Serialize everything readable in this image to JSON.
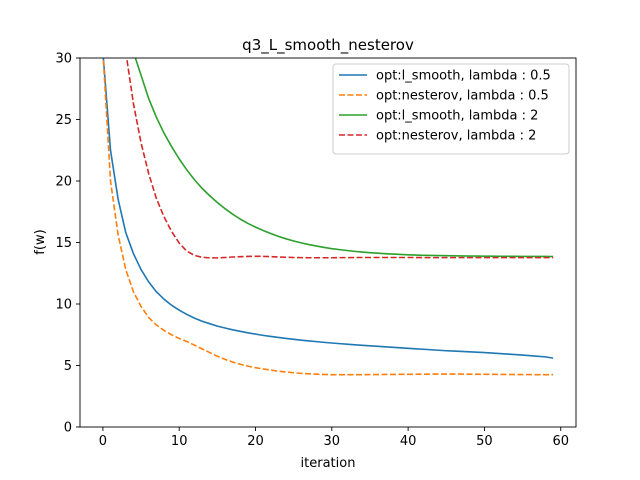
{
  "chart_data": {
    "type": "line",
    "title": "q3_L_smooth_nesterov",
    "xlabel": "iteration",
    "ylabel": "f(w)",
    "xlim": [
      -3,
      62
    ],
    "ylim": [
      0,
      30
    ],
    "xticks": [
      0,
      10,
      20,
      30,
      40,
      50,
      60
    ],
    "yticks": [
      0,
      5,
      10,
      15,
      20,
      25,
      30
    ],
    "grid": false,
    "legend_position": "top-right",
    "x": [
      0,
      1,
      2,
      3,
      4,
      5,
      6,
      7,
      8,
      9,
      10,
      11,
      12,
      13,
      14,
      15,
      16,
      17,
      18,
      19,
      20,
      21,
      22,
      23,
      24,
      25,
      26,
      27,
      28,
      29,
      30,
      31,
      32,
      33,
      34,
      35,
      36,
      37,
      38,
      39,
      40,
      41,
      42,
      43,
      44,
      45,
      46,
      47,
      48,
      49,
      50,
      51,
      52,
      53,
      54,
      55,
      56,
      57,
      58,
      59
    ],
    "series": [
      {
        "name": "opt:l_smooth, lambda : 0.5",
        "color": "#1f77b4",
        "dash": "solid",
        "values": [
          30.5,
          22.5,
          18.5,
          15.8,
          14.1,
          12.8,
          11.8,
          11.0,
          10.4,
          9.9,
          9.5,
          9.15,
          8.85,
          8.6,
          8.4,
          8.2,
          8.05,
          7.9,
          7.78,
          7.66,
          7.55,
          7.45,
          7.36,
          7.28,
          7.2,
          7.13,
          7.06,
          7.0,
          6.94,
          6.88,
          6.83,
          6.78,
          6.73,
          6.68,
          6.64,
          6.6,
          6.56,
          6.52,
          6.48,
          6.44,
          6.4,
          6.36,
          6.32,
          6.28,
          6.24,
          6.2,
          6.17,
          6.14,
          6.11,
          6.08,
          6.05,
          6.01,
          5.97,
          5.93,
          5.89,
          5.85,
          5.8,
          5.75,
          5.7,
          5.6
        ]
      },
      {
        "name": "opt:nesterov, lambda : 0.5",
        "color": "#ff7f0e",
        "dash": "dashed",
        "values": [
          30.5,
          20.0,
          15.6,
          12.8,
          11.0,
          9.8,
          8.9,
          8.3,
          7.85,
          7.5,
          7.2,
          6.95,
          6.65,
          6.35,
          6.05,
          5.75,
          5.5,
          5.28,
          5.1,
          4.95,
          4.82,
          4.72,
          4.62,
          4.54,
          4.47,
          4.41,
          4.36,
          4.32,
          4.29,
          4.27,
          4.25,
          4.25,
          4.25,
          4.25,
          4.25,
          4.26,
          4.26,
          4.27,
          4.27,
          4.28,
          4.28,
          4.29,
          4.29,
          4.3,
          4.3,
          4.3,
          4.3,
          4.3,
          4.29,
          4.29,
          4.28,
          4.28,
          4.27,
          4.27,
          4.26,
          4.26,
          4.26,
          4.25,
          4.25,
          4.25
        ]
      },
      {
        "name": "opt:l_smooth, lambda : 2",
        "color": "#2ca02c",
        "dash": "solid",
        "values": [
          null,
          null,
          null,
          null,
          30.5,
          28.6,
          26.7,
          25.2,
          23.9,
          22.8,
          21.8,
          20.9,
          20.1,
          19.4,
          18.8,
          18.25,
          17.75,
          17.3,
          16.9,
          16.55,
          16.25,
          15.98,
          15.73,
          15.5,
          15.3,
          15.12,
          14.97,
          14.83,
          14.71,
          14.6,
          14.5,
          14.42,
          14.35,
          14.28,
          14.22,
          14.17,
          14.13,
          14.09,
          14.06,
          14.03,
          14.0,
          13.98,
          13.96,
          13.95,
          13.94,
          13.93,
          13.92,
          13.91,
          13.9,
          13.9,
          13.89,
          13.89,
          13.88,
          13.88,
          13.88,
          13.87,
          13.87,
          13.87,
          13.87,
          13.86
        ]
      },
      {
        "name": "opt:nesterov, lambda : 2",
        "color": "#d62728",
        "dash": "dashed",
        "values": [
          null,
          null,
          null,
          30.5,
          26.3,
          23.1,
          20.6,
          18.6,
          17.1,
          15.9,
          14.95,
          14.3,
          13.95,
          13.8,
          13.75,
          13.75,
          13.78,
          13.82,
          13.85,
          13.87,
          13.88,
          13.87,
          13.85,
          13.82,
          13.8,
          13.78,
          13.77,
          13.76,
          13.76,
          13.76,
          13.76,
          13.77,
          13.77,
          13.78,
          13.78,
          13.78,
          13.78,
          13.78,
          13.78,
          13.78,
          13.78,
          13.78,
          13.77,
          13.77,
          13.77,
          13.77,
          13.77,
          13.77,
          13.77,
          13.77,
          13.77,
          13.77,
          13.77,
          13.77,
          13.77,
          13.77,
          13.77,
          13.77,
          13.77,
          13.77
        ]
      }
    ]
  }
}
